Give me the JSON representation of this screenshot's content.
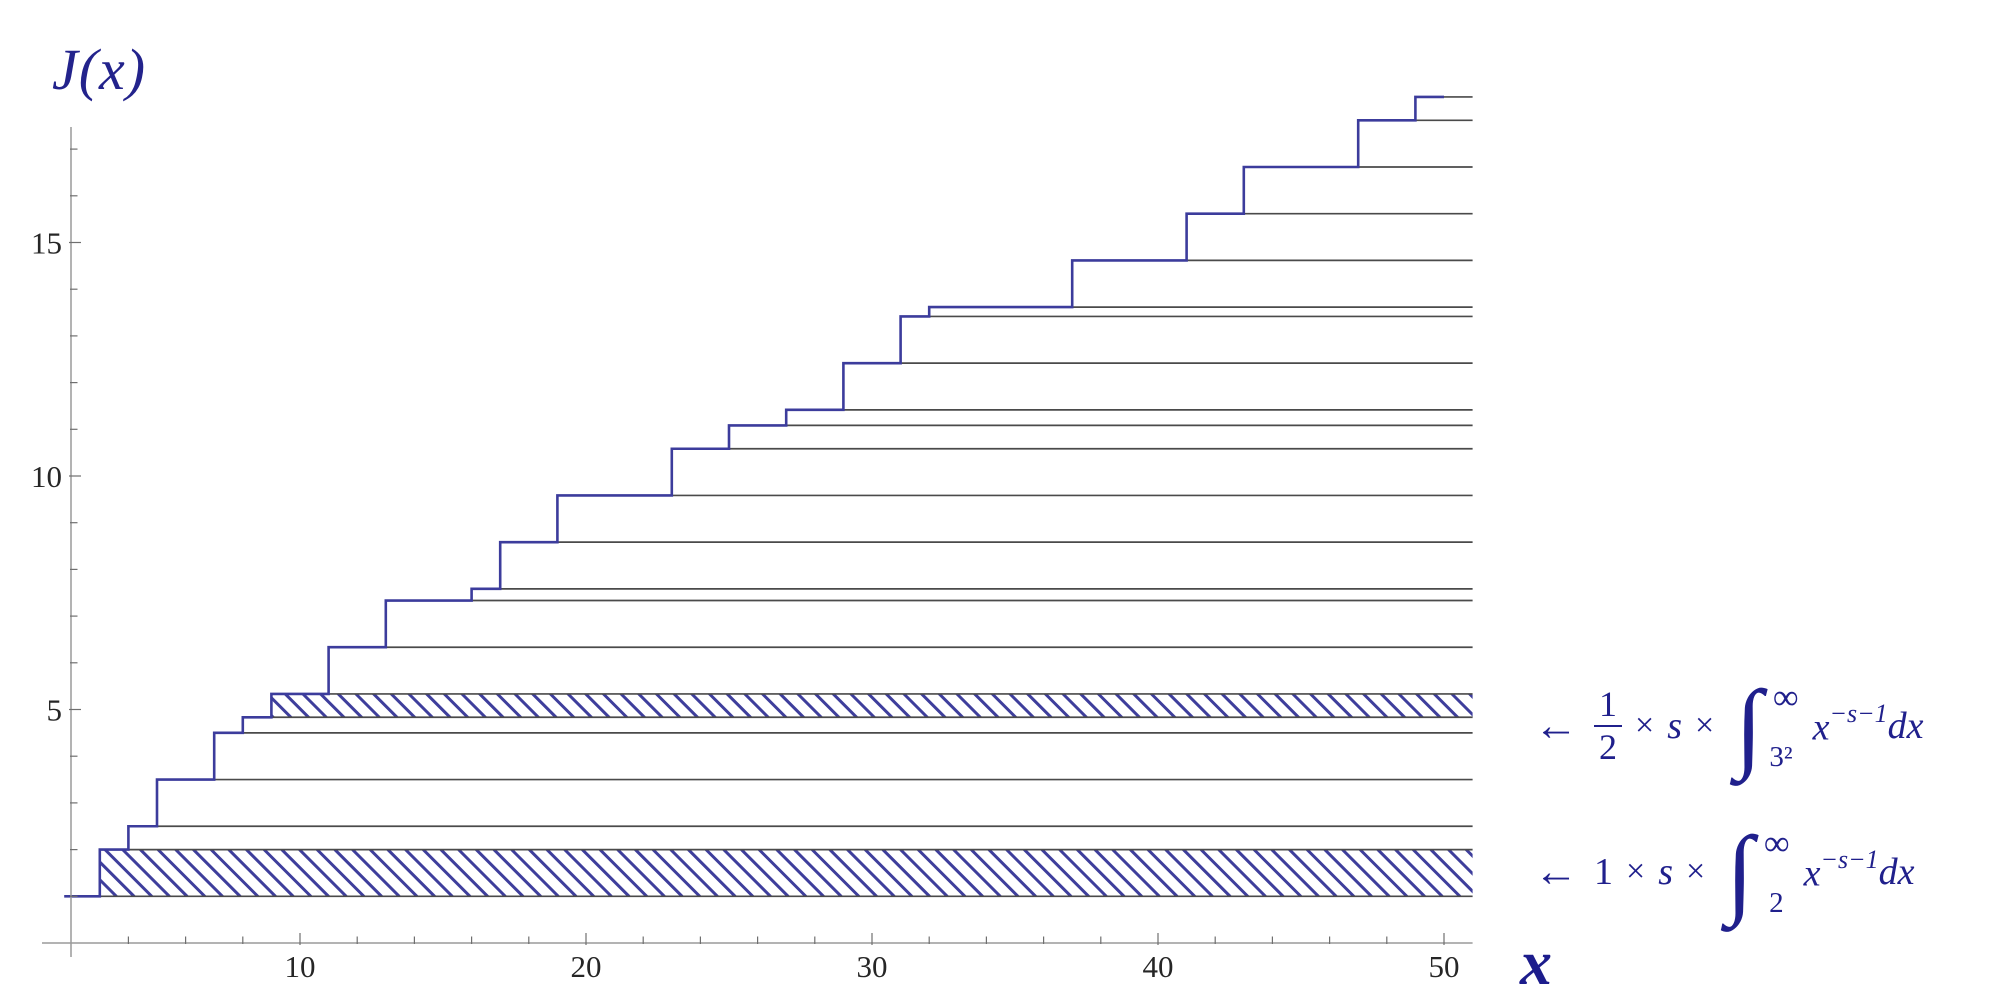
{
  "chart_data": {
    "type": "step-line",
    "title": "",
    "ylabel": "J(x)",
    "xlabel": "x",
    "xlim": [
      2,
      51
    ],
    "ylim": [
      0,
      17.5
    ],
    "grid": false,
    "legend": "none",
    "curve_x_start": 2,
    "curve_x_end": 50,
    "level_lines_x_end": 51,
    "jumps": [
      {
        "x": 2,
        "delta": 1,
        "J": 1
      },
      {
        "x": 3,
        "delta": 1,
        "J": 2
      },
      {
        "x": 4,
        "delta": 0.5,
        "J": 2.5
      },
      {
        "x": 5,
        "delta": 1,
        "J": 3.5
      },
      {
        "x": 7,
        "delta": 1,
        "J": 4.5
      },
      {
        "x": 8,
        "delta": 0.3333,
        "J": 4.8333
      },
      {
        "x": 9,
        "delta": 0.5,
        "J": 5.3333
      },
      {
        "x": 11,
        "delta": 1,
        "J": 6.3333
      },
      {
        "x": 13,
        "delta": 1,
        "J": 7.3333
      },
      {
        "x": 16,
        "delta": 0.25,
        "J": 7.5833
      },
      {
        "x": 17,
        "delta": 1,
        "J": 8.5833
      },
      {
        "x": 19,
        "delta": 1,
        "J": 9.5833
      },
      {
        "x": 23,
        "delta": 1,
        "J": 10.5833
      },
      {
        "x": 25,
        "delta": 0.5,
        "J": 11.0833
      },
      {
        "x": 27,
        "delta": 0.3333,
        "J": 11.4167
      },
      {
        "x": 29,
        "delta": 1,
        "J": 12.4167
      },
      {
        "x": 31,
        "delta": 1,
        "J": 13.4167
      },
      {
        "x": 32,
        "delta": 0.2,
        "J": 13.6167
      },
      {
        "x": 37,
        "delta": 1,
        "J": 14.6167
      },
      {
        "x": 41,
        "delta": 1,
        "J": 15.6167
      },
      {
        "x": 43,
        "delta": 1,
        "J": 16.6167
      },
      {
        "x": 47,
        "delta": 1,
        "J": 17.6167
      },
      {
        "x": 49,
        "delta": 0.5,
        "J": 18.1167
      }
    ],
    "hatched_bands": [
      {
        "y_bottom": 1,
        "y_top": 2,
        "x_start": 3,
        "x_end": 51
      },
      {
        "y_bottom": 4.8333,
        "y_top": 5.3333,
        "x_start": 9,
        "x_end": 51
      }
    ],
    "x_ticks_major": [
      {
        "v": 10,
        "label": "10"
      },
      {
        "v": 20,
        "label": "20"
      },
      {
        "v": 30,
        "label": "30"
      },
      {
        "v": 40,
        "label": "40"
      },
      {
        "v": 50,
        "label": "50"
      }
    ],
    "x_ticks_minor": [
      4,
      6,
      8,
      12,
      14,
      16,
      18,
      22,
      24,
      26,
      28,
      32,
      34,
      36,
      38,
      42,
      44,
      46,
      48
    ],
    "y_ticks_major": [
      {
        "v": 5,
        "label": "5"
      },
      {
        "v": 10,
        "label": "10"
      },
      {
        "v": 15,
        "label": "15"
      }
    ],
    "y_ticks_minor": [
      1,
      2,
      3,
      4,
      6,
      7,
      8,
      9,
      11,
      12,
      13,
      14,
      16,
      17
    ],
    "colors": {
      "curve": "#3c3c9c",
      "hatch": "#3e3e9c",
      "level_line": "#4a4a4a",
      "axis": "#9a9a9a",
      "tick_label": "#262626",
      "annotation": "#20208c",
      "title": "#23238c"
    }
  },
  "annotations": [
    {
      "arrow": "←",
      "coefficient_numerator": "1",
      "coefficient_denominator": "2",
      "times_1": "×",
      "variable_s": "s",
      "times_2": "×",
      "integral_sign": "∫",
      "integral_upper": "∞",
      "integral_lower": "3²",
      "integrand_base": "x",
      "integrand_exponent": "−s−1",
      "differential": "dx"
    },
    {
      "arrow": "←",
      "coefficient": "1",
      "times_1": "×",
      "variable_s": "s",
      "times_2": "×",
      "integral_sign": "∫",
      "integral_upper": "∞",
      "integral_lower": "2",
      "integrand_base": "x",
      "integrand_exponent": "−s−1",
      "differential": "dx"
    }
  ]
}
